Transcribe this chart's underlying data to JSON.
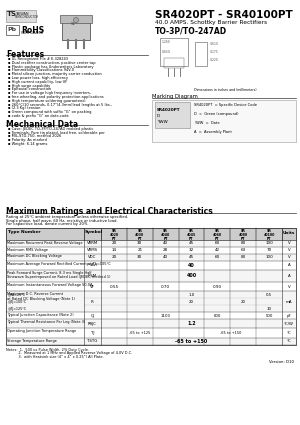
{
  "title1": "SR4020PT - SR40100PT",
  "title2": "40.0 AMPS. Schottky Barrier Rectifiers",
  "title3": "TO-3P/TO-247AD",
  "bg_color": "#ffffff",
  "features": [
    "UL Recognized File # E-328243",
    "Dual rectifier construction, positive center tap",
    "Plastic package has Underwriters Laboratory",
    "Flammability Classifications 94V-0",
    "Metal silicon junction, majority carrier conduction",
    "Low power loss, high efficiency",
    "High current capability, low VF",
    "High surge capability",
    "Epitaxial construction",
    "For use in voltage high frequency inverters,",
    "free wheeling, and polarity protection applications",
    "High temperature soldering guaranteed:",
    "260°C/10 seconds, 0.17”(4.3mm)lead lengths at 5 lbs.,",
    "(2.3 Kg) tension",
    "Green compound with suffix “G” on packing",
    "code & prefix “G” on date-code"
  ],
  "mechanical": [
    "Case: JEDEC TO-3P/TO-247AD molded plastic",
    "Terminals: Pure tin plated, lead free, solderable per",
    "MIL-STD-750, method 2026",
    "Polarity: As marked",
    "Weight: 6.14 grams"
  ],
  "notes": [
    "Notes:  1.  500 us Pulse Width, 2% Duty Cycle.",
    "           2.  Measured at 1 MHz and Applied Reverse Voltage of 4.0V D.C.",
    "           3.  with Heatsink size (4” x 4” x 0.25”) All Plate."
  ],
  "version": "Version: D10",
  "section_max_ratings": "Maximum Ratings and Electrical Characteristics",
  "section_conditions": [
    "Rating at 25°C ambient temperature unless otherwise specified.",
    "Single phase, half wave, 60 Hz, resistive or inductive load.",
    "For capacitive load, derate current by 20%"
  ],
  "col_headers": [
    "SR\n4020\nPT",
    "SR\n4030\nPT",
    "SR\n4040\nPT",
    "SR\n4045\nPT",
    "SR\n4060\nPT",
    "SR\n4080\nPT",
    "SR\n40100\nPT"
  ],
  "marking_lines": [
    "SR4020PT  = Specific Device Code",
    "D  =  Green (compound)",
    "YWW  =  Date",
    "A  =  Assembly Plant"
  ]
}
